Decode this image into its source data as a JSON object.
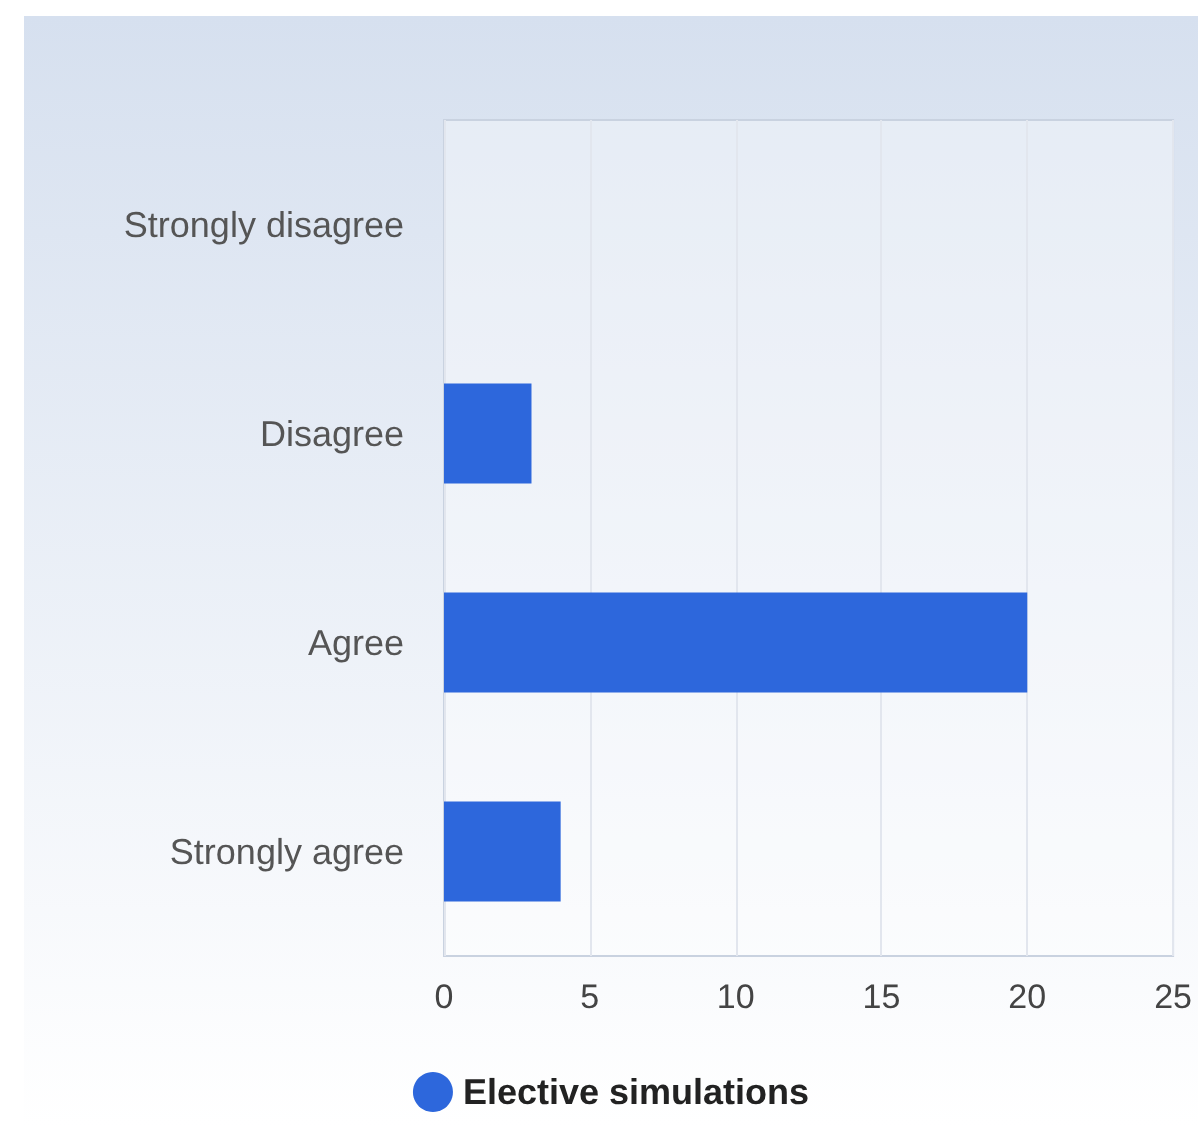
{
  "chart_data": {
    "type": "bar",
    "orientation": "horizontal",
    "categories": [
      "Strongly disagree",
      "Disagree",
      "Agree",
      "Strongly agree"
    ],
    "series": [
      {
        "name": "Elective simulations",
        "color": "#2d67dc",
        "values": [
          0,
          3,
          20,
          4
        ]
      }
    ],
    "xlim": [
      0,
      25
    ],
    "xticks": [
      0,
      5,
      10,
      15,
      20,
      25
    ],
    "grid": "x",
    "legend": "bottom"
  }
}
